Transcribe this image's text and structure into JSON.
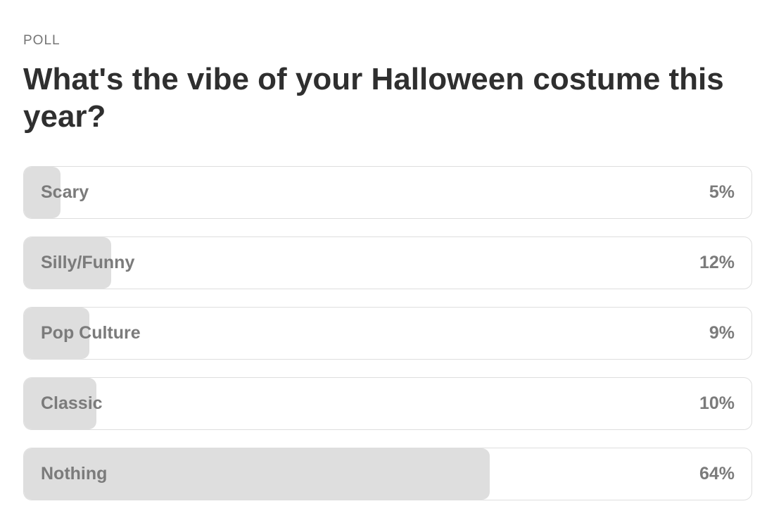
{
  "poll": {
    "eyebrow": "POLL",
    "question": "What's the vibe of your Halloween costume this year?",
    "fill_color": "#dedede",
    "options": [
      {
        "label": "Scary",
        "percent_text": "5%",
        "percent": 5
      },
      {
        "label": "Silly/Funny",
        "percent_text": "12%",
        "percent": 12
      },
      {
        "label": "Pop Culture",
        "percent_text": "9%",
        "percent": 9
      },
      {
        "label": "Classic",
        "percent_text": "10%",
        "percent": 10
      },
      {
        "label": "Nothing",
        "percent_text": "64%",
        "percent": 64
      }
    ]
  }
}
